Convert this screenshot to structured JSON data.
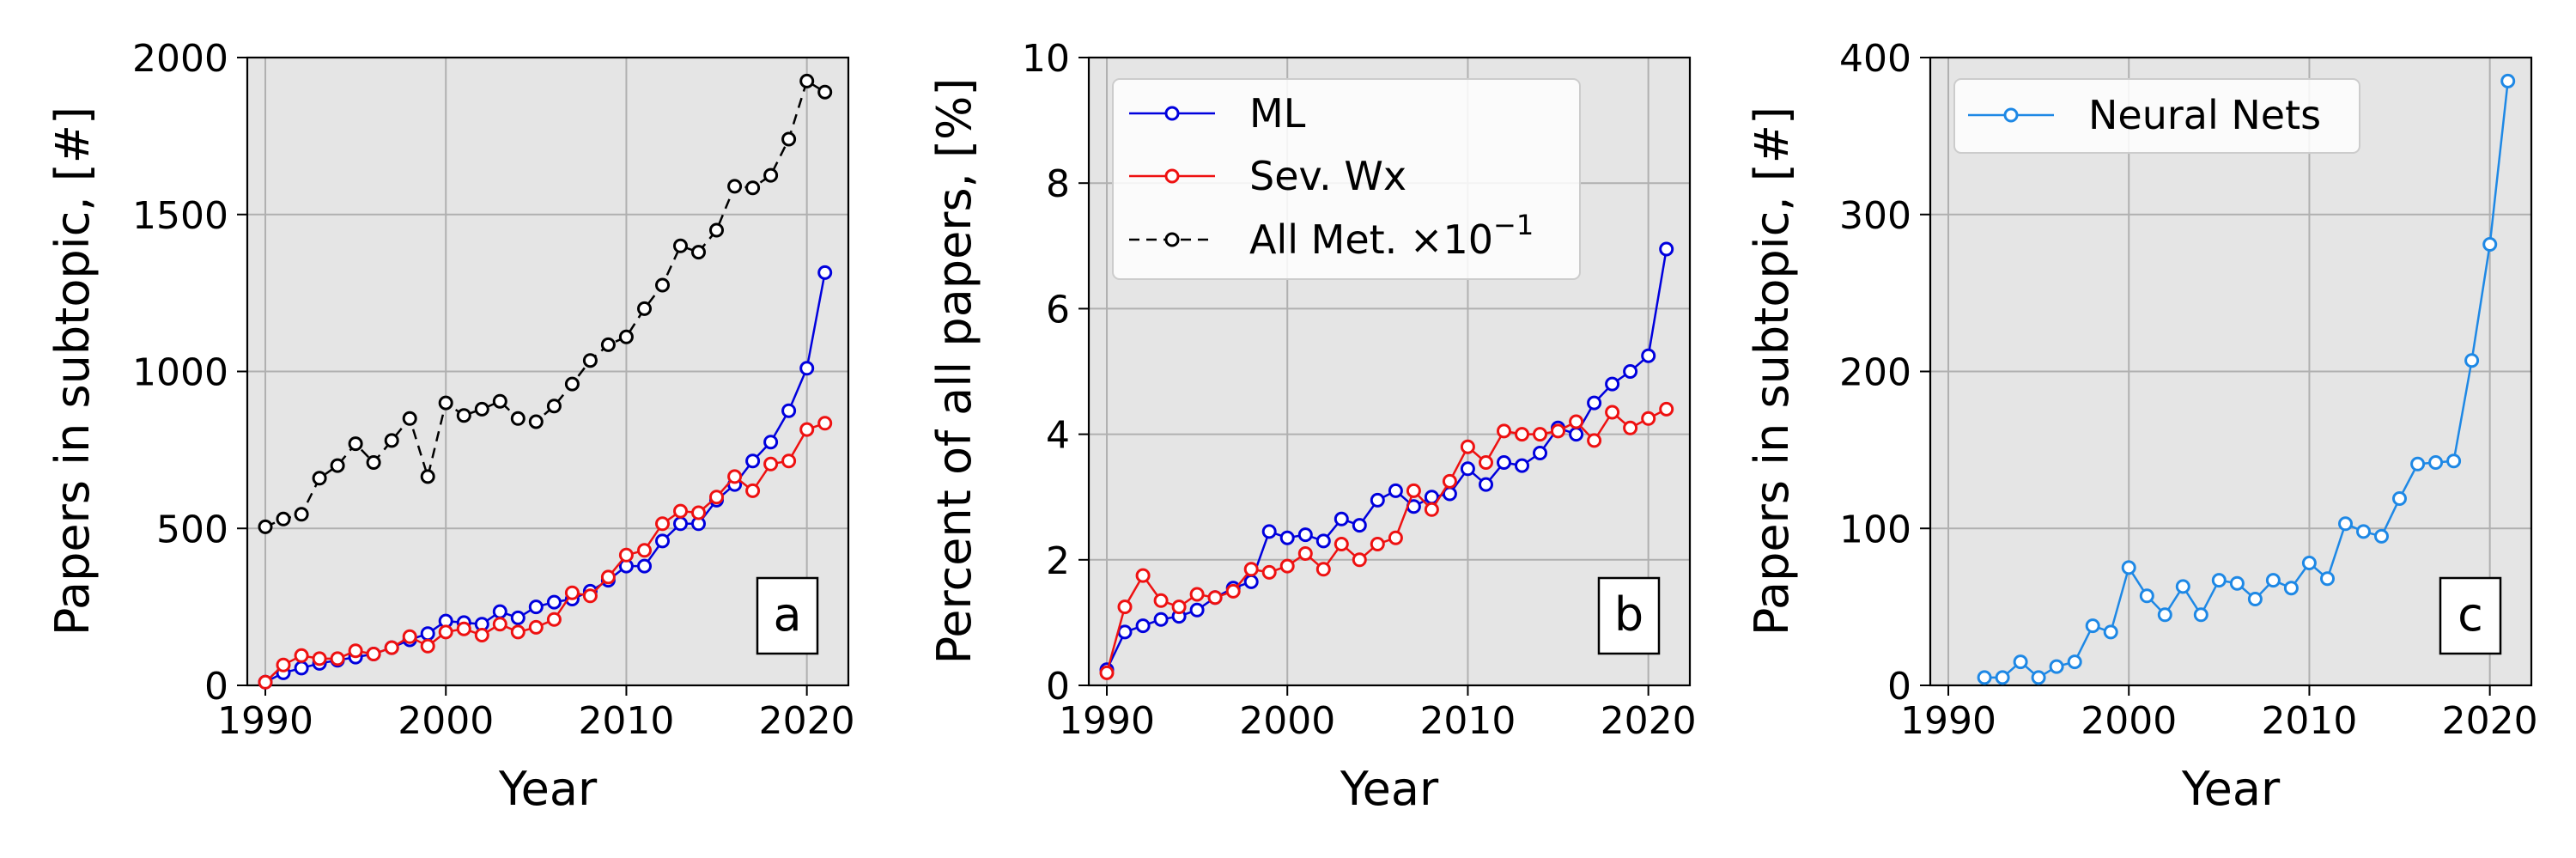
{
  "chart_data": [
    {
      "type": "line",
      "panel_label": "a",
      "xlabel": "Year",
      "ylabel": "Papers in subtopic, [#]",
      "xlim": [
        1989,
        2022.3
      ],
      "ylim": [
        0,
        2000
      ],
      "xticks": [
        1990,
        2000,
        2010,
        2020
      ],
      "yticks": [
        0,
        500,
        1000,
        1500,
        2000
      ],
      "grid": true,
      "legend": "none",
      "series": [
        {
          "color": "#000000",
          "dashed": true,
          "x": [
            1990,
            1991,
            1992,
            1993,
            1994,
            1995,
            1996,
            1997,
            1998,
            1999,
            2000,
            2001,
            2002,
            2003,
            2004,
            2005,
            2006,
            2007,
            2008,
            2009,
            2010,
            2011,
            2012,
            2013,
            2014,
            2015,
            2016,
            2017,
            2018,
            2019,
            2020,
            2021
          ],
          "y": [
            505,
            530,
            545,
            660,
            700,
            770,
            710,
            780,
            850,
            665,
            900,
            860,
            880,
            905,
            850,
            840,
            890,
            960,
            1035,
            1085,
            1110,
            1200,
            1275,
            1400,
            1380,
            1450,
            1590,
            1585,
            1625,
            1740,
            1925,
            1890
          ]
        },
        {
          "color": "#0000dd",
          "dashed": false,
          "x": [
            1990,
            1991,
            1992,
            1993,
            1994,
            1995,
            1996,
            1997,
            1998,
            1999,
            2000,
            2001,
            2002,
            2003,
            2004,
            2005,
            2006,
            2007,
            2008,
            2009,
            2010,
            2011,
            2012,
            2013,
            2014,
            2015,
            2016,
            2017,
            2018,
            2019,
            2020,
            2021
          ],
          "y": [
            10,
            40,
            55,
            70,
            80,
            90,
            100,
            120,
            145,
            165,
            205,
            200,
            195,
            235,
            215,
            250,
            265,
            275,
            300,
            335,
            380,
            380,
            460,
            515,
            515,
            590,
            640,
            715,
            775,
            875,
            1010,
            1315
          ]
        },
        {
          "color": "#ee1111",
          "dashed": false,
          "x": [
            1990,
            1991,
            1992,
            1993,
            1994,
            1995,
            1996,
            1997,
            1998,
            1999,
            2000,
            2001,
            2002,
            2003,
            2004,
            2005,
            2006,
            2007,
            2008,
            2009,
            2010,
            2011,
            2012,
            2013,
            2014,
            2015,
            2016,
            2017,
            2018,
            2019,
            2020,
            2021
          ],
          "y": [
            10,
            65,
            95,
            85,
            85,
            110,
            100,
            120,
            155,
            125,
            170,
            180,
            160,
            195,
            170,
            185,
            210,
            295,
            285,
            345,
            415,
            430,
            515,
            555,
            550,
            600,
            665,
            620,
            705,
            715,
            815,
            835
          ]
        }
      ]
    },
    {
      "type": "line",
      "panel_label": "b",
      "xlabel": "Year",
      "ylabel": "Percent of all papers, [%]",
      "xlim": [
        1989,
        2022.3
      ],
      "ylim": [
        0,
        10
      ],
      "xticks": [
        1990,
        2000,
        2010,
        2020
      ],
      "yticks": [
        0,
        2,
        4,
        6,
        8,
        10
      ],
      "grid": true,
      "legend": "top-left",
      "series": [
        {
          "name": "ML",
          "color": "#0000dd",
          "dashed": false,
          "x": [
            1990,
            1991,
            1992,
            1993,
            1994,
            1995,
            1996,
            1997,
            1998,
            1999,
            2000,
            2001,
            2002,
            2003,
            2004,
            2005,
            2006,
            2007,
            2008,
            2009,
            2010,
            2011,
            2012,
            2013,
            2014,
            2015,
            2016,
            2017,
            2018,
            2019,
            2020,
            2021
          ],
          "y": [
            0.25,
            0.85,
            0.95,
            1.05,
            1.1,
            1.2,
            1.4,
            1.55,
            1.65,
            2.45,
            2.35,
            2.4,
            2.3,
            2.65,
            2.55,
            2.95,
            3.1,
            2.85,
            3.0,
            3.05,
            3.45,
            3.2,
            3.55,
            3.5,
            3.7,
            4.1,
            4.0,
            4.5,
            4.8,
            5.0,
            5.25,
            6.95
          ]
        },
        {
          "name": "Sev. Wx",
          "color": "#ee1111",
          "dashed": false,
          "x": [
            1990,
            1991,
            1992,
            1993,
            1994,
            1995,
            1996,
            1997,
            1998,
            1999,
            2000,
            2001,
            2002,
            2003,
            2004,
            2005,
            2006,
            2007,
            2008,
            2009,
            2010,
            2011,
            2012,
            2013,
            2014,
            2015,
            2016,
            2017,
            2018,
            2019,
            2020,
            2021
          ],
          "y": [
            0.2,
            1.25,
            1.75,
            1.35,
            1.25,
            1.45,
            1.4,
            1.5,
            1.85,
            1.8,
            1.9,
            2.1,
            1.85,
            2.25,
            2.0,
            2.25,
            2.35,
            3.1,
            2.8,
            3.25,
            3.8,
            3.55,
            4.05,
            4.0,
            4.0,
            4.05,
            4.2,
            3.9,
            4.35,
            4.1,
            4.25,
            4.4
          ]
        },
        {
          "name": "All Met. ×10",
          "name_exponent": "−1",
          "color": "#000000",
          "dashed": true,
          "x": [],
          "y": []
        }
      ]
    },
    {
      "type": "line",
      "panel_label": "c",
      "xlabel": "Year",
      "ylabel": "Papers in subtopic, [#]",
      "xlim": [
        1989,
        2022.3
      ],
      "ylim": [
        0,
        400
      ],
      "xticks": [
        1990,
        2000,
        2010,
        2020
      ],
      "yticks": [
        0,
        100,
        200,
        300,
        400
      ],
      "grid": true,
      "legend": "top-left",
      "series": [
        {
          "name": "Neural Nets",
          "color": "#1e88e5",
          "dashed": false,
          "x": [
            1992,
            1993,
            1994,
            1995,
            1996,
            1997,
            1998,
            1999,
            2000,
            2001,
            2002,
            2003,
            2004,
            2005,
            2006,
            2007,
            2008,
            2009,
            2010,
            2011,
            2012,
            2013,
            2014,
            2015,
            2016,
            2017,
            2018,
            2019,
            2020,
            2021
          ],
          "y": [
            5,
            5,
            15,
            5,
            12,
            15,
            38,
            34,
            75,
            57,
            45,
            63,
            45,
            67,
            65,
            55,
            67,
            62,
            78,
            68,
            103,
            98,
            95,
            119,
            141,
            142,
            143,
            207,
            281,
            385
          ]
        }
      ]
    }
  ]
}
